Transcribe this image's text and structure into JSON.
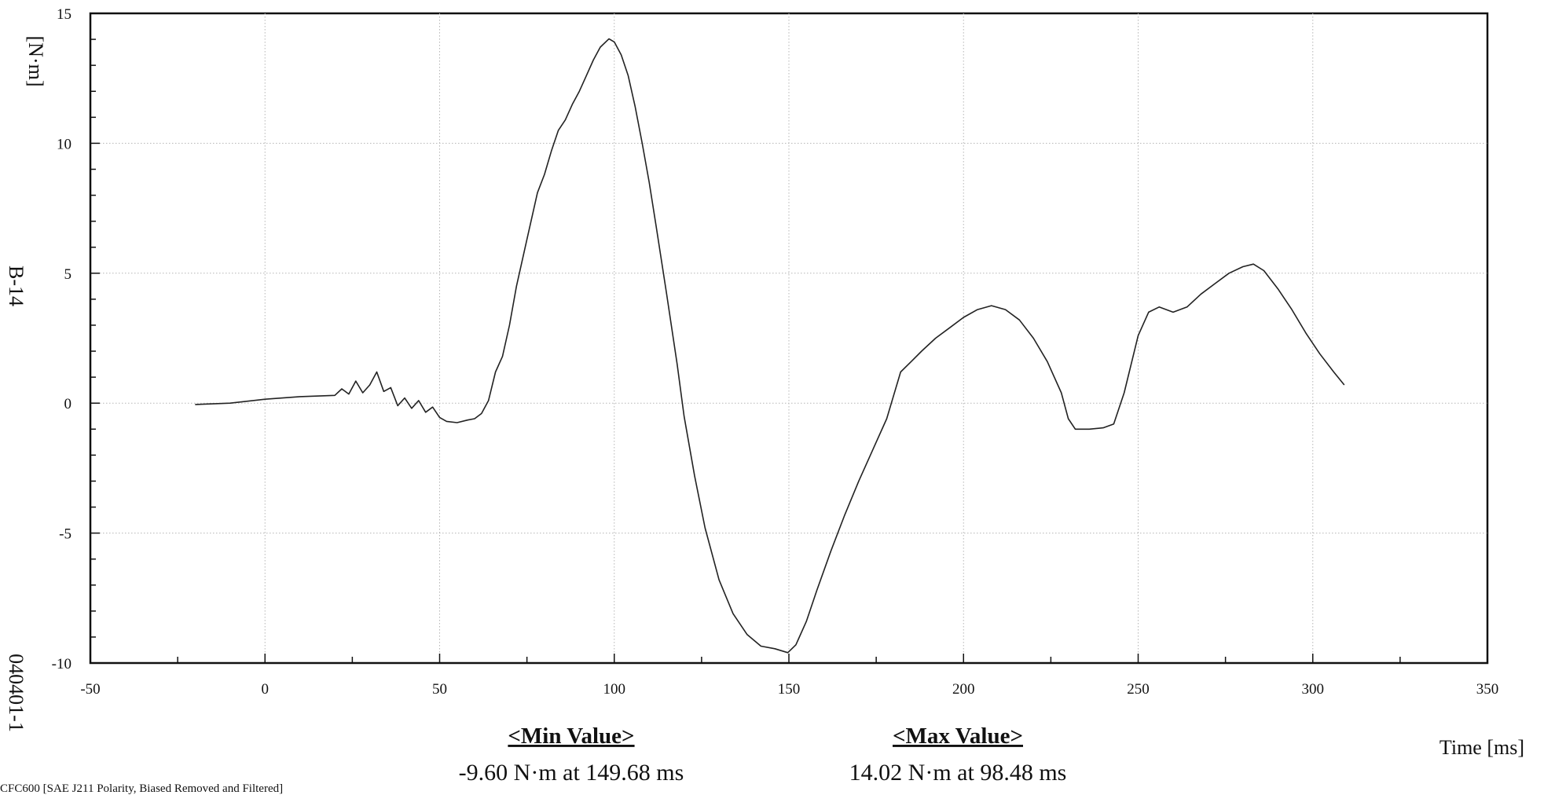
{
  "chart_data": {
    "type": "line",
    "xlabel": "Time [ms]",
    "ylabel": "[N·m]",
    "xlim": [
      -50,
      350
    ],
    "ylim": [
      -10,
      15
    ],
    "x_ticks": [
      -50,
      0,
      50,
      100,
      150,
      200,
      250,
      300,
      350
    ],
    "y_ticks": [
      -10,
      -5,
      0,
      5,
      10,
      15
    ],
    "grid": true,
    "channel_label": "B-14",
    "test_id": "040401-1",
    "min_title": "<Min Value>",
    "min_text": "-9.60 N·m at 149.68 ms",
    "max_title": "<Max Value>",
    "max_text": "14.02 N·m at 98.48 ms",
    "footer": "CFC600 [SAE J211 Polarity, Biased Removed and Filtered]",
    "series": [
      {
        "x": [
          -20,
          -10,
          0,
          10,
          20,
          22,
          24,
          26,
          28,
          30,
          32,
          34,
          36,
          38,
          40,
          42,
          44,
          46,
          48,
          50,
          52,
          55,
          58,
          60,
          62,
          64,
          66,
          68,
          70,
          72,
          75,
          78,
          80,
          82,
          84,
          86,
          88,
          90,
          92,
          94,
          96,
          98.48,
          100,
          102,
          104,
          106,
          108,
          110,
          112,
          115,
          118,
          120,
          123,
          126,
          130,
          134,
          138,
          142,
          146,
          149.68,
          152,
          155,
          158,
          162,
          166,
          170,
          174,
          178,
          182,
          185,
          188,
          192,
          196,
          200,
          204,
          208,
          212,
          216,
          220,
          224,
          228,
          230,
          232,
          236,
          240,
          243,
          246,
          250,
          253,
          256,
          260,
          264,
          268,
          272,
          276,
          280,
          283,
          286,
          290,
          294,
          298,
          302,
          306,
          309
        ],
        "y": [
          -0.05,
          0.0,
          0.15,
          0.25,
          0.3,
          0.55,
          0.35,
          0.85,
          0.4,
          0.7,
          1.2,
          0.45,
          0.6,
          -0.1,
          0.2,
          -0.2,
          0.1,
          -0.35,
          -0.15,
          -0.55,
          -0.7,
          -0.75,
          -0.65,
          -0.6,
          -0.4,
          0.1,
          1.2,
          1.8,
          3.0,
          4.5,
          6.3,
          8.1,
          8.8,
          9.7,
          10.5,
          10.9,
          11.5,
          12.0,
          12.6,
          13.2,
          13.7,
          14.02,
          13.9,
          13.4,
          12.6,
          11.4,
          10.0,
          8.5,
          6.8,
          4.2,
          1.5,
          -0.5,
          -2.8,
          -4.8,
          -6.8,
          -8.1,
          -8.9,
          -9.35,
          -9.45,
          -9.6,
          -9.3,
          -8.4,
          -7.2,
          -5.7,
          -4.3,
          -3.0,
          -1.8,
          -0.6,
          1.2,
          1.6,
          2.0,
          2.5,
          2.9,
          3.3,
          3.6,
          3.75,
          3.6,
          3.2,
          2.5,
          1.6,
          0.4,
          -0.6,
          -1.0,
          -1.0,
          -0.95,
          -0.8,
          0.4,
          2.6,
          3.5,
          3.7,
          3.5,
          3.7,
          4.2,
          4.6,
          5.0,
          5.25,
          5.35,
          5.1,
          4.4,
          3.6,
          2.7,
          1.9,
          1.2,
          0.7
        ]
      }
    ]
  }
}
